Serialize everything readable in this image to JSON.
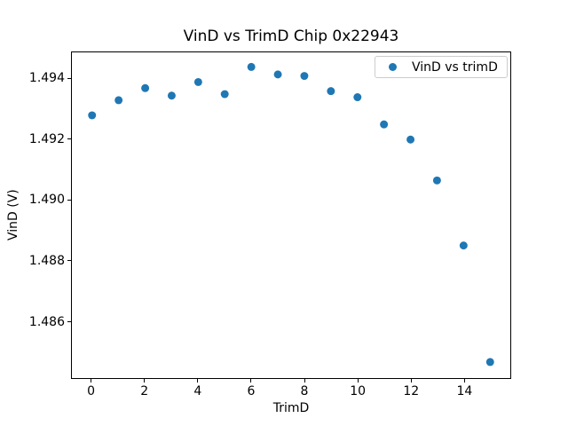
{
  "chart_data": {
    "type": "scatter",
    "title": "VinD vs TrimD Chip 0x22943",
    "xlabel": "TrimD",
    "ylabel": "VinD (V)",
    "x": [
      0,
      1,
      2,
      3,
      4,
      5,
      6,
      7,
      8,
      9,
      10,
      11,
      12,
      13,
      14,
      15
    ],
    "y": [
      1.4928,
      1.4933,
      1.4937,
      1.49345,
      1.4939,
      1.4935,
      1.4944,
      1.49415,
      1.4941,
      1.4936,
      1.4934,
      1.4925,
      1.492,
      1.49065,
      1.4885,
      1.48465
    ],
    "xlim": [
      -0.75,
      15.75
    ],
    "ylim": [
      1.48412,
      1.49488
    ],
    "xticks": [
      0,
      2,
      4,
      6,
      8,
      10,
      12,
      14
    ],
    "xtick_labels": [
      "0",
      "2",
      "4",
      "6",
      "8",
      "10",
      "12",
      "14"
    ],
    "yticks": [
      1.486,
      1.488,
      1.49,
      1.492,
      1.494
    ],
    "ytick_labels": [
      "1.486",
      "1.488",
      "1.490",
      "1.492",
      "1.494"
    ],
    "marker_color": "#1f77b4",
    "marker_radius": 4.5,
    "grid": false,
    "legend": {
      "label": "VinD vs trimD",
      "position": "upper right"
    }
  }
}
